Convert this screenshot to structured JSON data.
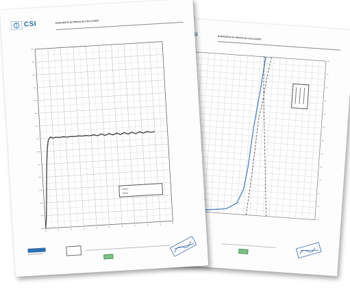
{
  "front_sheet": {
    "logo": {
      "text": "CSI",
      "color": "#1f6aa5"
    },
    "title": "RAPPORTO DI PROVA DI COLLAUDO",
    "chart_title": "",
    "legend_entries": [
      "",
      ""
    ],
    "footer": {
      "label": "",
      "note": ""
    }
  },
  "back_sheet": {
    "logo": {
      "text": "CSI",
      "color": "#1f6aa5"
    },
    "title": "RAPPORTO DI PROVA DI COLLAUDO",
    "legend_entries": [
      "",
      "",
      ""
    ],
    "footer": {
      "label": "",
      "note": ""
    }
  },
  "chart_data": [
    {
      "type": "line",
      "title": "",
      "xlabel": "",
      "ylabel": "",
      "grid": true,
      "xlim": [
        0,
        100
      ],
      "ylim": [
        0,
        140
      ],
      "x_ticks": [],
      "y_ticks": [],
      "legend_position": "bottom-right",
      "series": [
        {
          "name": "",
          "color": "#3a3a3a",
          "x": [
            0,
            1,
            2,
            3,
            4,
            5,
            6,
            7,
            8,
            9,
            10,
            12,
            15,
            18,
            21,
            24,
            27,
            30,
            33,
            36,
            39,
            42,
            45,
            48,
            51,
            54,
            57,
            60,
            63,
            66,
            69,
            72,
            75,
            78,
            81,
            84,
            87,
            90
          ],
          "y": [
            0,
            8,
            22,
            38,
            52,
            62,
            68,
            70,
            71,
            70.5,
            70,
            70.6,
            70.2,
            70.6,
            70.1,
            70.5,
            70.2,
            70.6,
            70.2,
            70.5,
            70.1,
            70.7,
            69.8,
            71.0,
            69.6,
            71.0,
            69.6,
            71.0,
            69.6,
            71.0,
            69.6,
            71.0,
            69.6,
            70.9,
            69.7,
            70.8,
            69.9,
            70.4
          ]
        }
      ]
    },
    {
      "type": "line",
      "title": "",
      "xlabel": "",
      "ylabel": "",
      "grid": true,
      "legend_position": "top-right",
      "series": [
        {
          "name": "",
          "color": "#4a7fc0",
          "style": "solid",
          "x": [
            5,
            20,
            38,
            45,
            49,
            51,
            53,
            56,
            58
          ],
          "y": [
            0,
            1,
            3,
            7,
            16,
            30,
            55,
            80,
            100
          ]
        },
        {
          "name": "",
          "color": "#555555",
          "style": "dashed",
          "x": [
            52,
            53,
            54,
            55,
            56,
            58,
            60,
            62
          ],
          "y": [
            0,
            12,
            25,
            40,
            60,
            72,
            88,
            100
          ]
        },
        {
          "name": "",
          "color": "#555555",
          "style": "dashed",
          "x": [
            66,
            64,
            62,
            60,
            58,
            57
          ],
          "y": [
            0,
            20,
            40,
            60,
            80,
            100
          ]
        }
      ]
    }
  ]
}
